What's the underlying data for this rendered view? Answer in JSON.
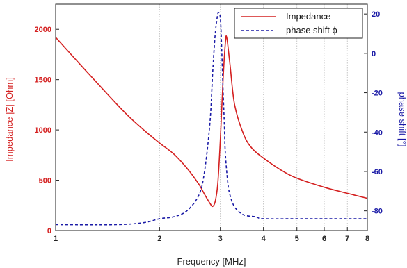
{
  "chart_data": {
    "type": "line",
    "xlabel": "Frequency [MHz]",
    "ylabel_left": "Impedance |Z| [Ohm]",
    "ylabel_right": "phase shift [°]",
    "x_scale": "log",
    "xlim": [
      1,
      8
    ],
    "ylim_left": [
      0,
      2250
    ],
    "ylim_right": [
      -90,
      25
    ],
    "x_ticks": [
      "1",
      "2",
      "3",
      "4",
      "5",
      "6",
      "7",
      "8"
    ],
    "y_ticks_left": [
      "0",
      "500",
      "1000",
      "1500",
      "2000"
    ],
    "y_ticks_right": [
      "20",
      "0",
      "-20",
      "-40",
      "-60",
      "-80"
    ],
    "grid": "vertical dotted lines at 2, 3, 4, 5, 6, 7 MHz",
    "legend_position": "top-right",
    "colors": {
      "impedance": "#d42020",
      "phase": "#1a1aa6"
    },
    "series": [
      {
        "name": "Impedance",
        "axis": "left",
        "style": "solid",
        "x": [
          1.0,
          1.2,
          1.4,
          1.6,
          1.8,
          2.0,
          2.2,
          2.4,
          2.6,
          2.7,
          2.8,
          2.85,
          2.9,
          2.95,
          3.0,
          3.05,
          3.1,
          3.13,
          3.2,
          3.3,
          3.5,
          3.7,
          4.0,
          4.5,
          5.0,
          6.0,
          7.0,
          8.0
        ],
        "values": [
          1920,
          1620,
          1370,
          1160,
          1000,
          870,
          760,
          620,
          460,
          360,
          270,
          240,
          290,
          470,
          900,
          1450,
          1850,
          1920,
          1650,
          1250,
          960,
          820,
          720,
          600,
          520,
          430,
          370,
          320
        ]
      },
      {
        "name": "phase shift ϕ",
        "axis": "right",
        "style": "dashed",
        "x": [
          1.0,
          1.5,
          1.8,
          2.0,
          2.2,
          2.4,
          2.6,
          2.7,
          2.8,
          2.85,
          2.9,
          2.95,
          2.98,
          3.0,
          3.02,
          3.05,
          3.08,
          3.1,
          3.15,
          3.2,
          3.3,
          3.5,
          3.8,
          4.0,
          5.0,
          6.0,
          7.0,
          8.0
        ],
        "values": [
          -87,
          -87,
          -86,
          -84,
          -83,
          -80,
          -72,
          -60,
          -35,
          -10,
          10,
          20,
          20,
          18,
          8,
          -15,
          -35,
          -50,
          -65,
          -72,
          -78,
          -82,
          -83,
          -84,
          -84,
          -84,
          -84,
          -84
        ]
      }
    ]
  }
}
